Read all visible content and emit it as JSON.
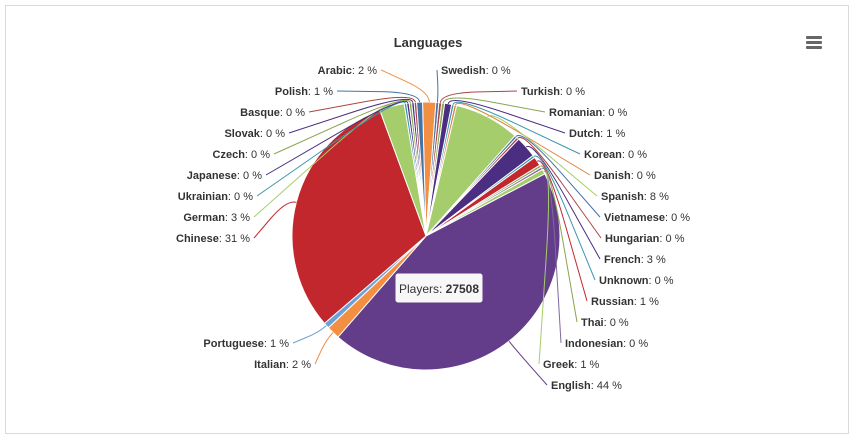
{
  "chart_data": {
    "type": "pie",
    "title": "Languages",
    "tooltip": {
      "series_label": "Players",
      "value_text": "27508"
    },
    "slices": [
      {
        "name": "Arabic",
        "percent_label": "2 %",
        "percent": 1.6,
        "color": "#f28f43"
      },
      {
        "name": "Swedish",
        "percent_label": "0 %",
        "percent": 0.35,
        "color": "#4572a7"
      },
      {
        "name": "Turkish",
        "percent_label": "0 %",
        "percent": 0.35,
        "color": "#aa4643"
      },
      {
        "name": "Romanian",
        "percent_label": "0 %",
        "percent": 0.35,
        "color": "#89a54e"
      },
      {
        "name": "Dutch",
        "percent_label": "1 %",
        "percent": 0.85,
        "color": "#4b2d82"
      },
      {
        "name": "Korean",
        "percent_label": "0 %",
        "percent": 0.3,
        "color": "#3d96ae"
      },
      {
        "name": "Danish",
        "percent_label": "0 %",
        "percent": 0.3,
        "color": "#db843d"
      },
      {
        "name": "Spanish",
        "percent_label": "8 %",
        "percent": 7.9,
        "color": "#a5cd6b"
      },
      {
        "name": "Vietnamese",
        "percent_label": "0 %",
        "percent": 0.3,
        "color": "#4572a7"
      },
      {
        "name": "Hungarian",
        "percent_label": "0 %",
        "percent": 0.3,
        "color": "#aa4643"
      },
      {
        "name": "French",
        "percent_label": "3 %",
        "percent": 2.6,
        "color": "#4b2d82"
      },
      {
        "name": "Unknown",
        "percent_label": "0 %",
        "percent": 0.3,
        "color": "#3d96ae"
      },
      {
        "name": "Russian",
        "percent_label": "1 %",
        "percent": 1.1,
        "color": "#c1272d"
      },
      {
        "name": "Thai",
        "percent_label": "0 %",
        "percent": 0.3,
        "color": "#89a54e"
      },
      {
        "name": "Indonesian",
        "percent_label": "0 %",
        "percent": 0.3,
        "color": "#80699b"
      },
      {
        "name": "Greek",
        "percent_label": "1 %",
        "percent": 0.6,
        "color": "#a5cd6b"
      },
      {
        "name": "English",
        "percent_label": "44 %",
        "percent": 44.2,
        "color": "#633d8a"
      },
      {
        "name": "Italian",
        "percent_label": "2 %",
        "percent": 1.6,
        "color": "#f28f43"
      },
      {
        "name": "Portuguese",
        "percent_label": "1 %",
        "percent": 0.7,
        "color": "#6e9fd6"
      },
      {
        "name": "Chinese",
        "percent_label": "31 %",
        "percent": 30.8,
        "color": "#c1272d"
      },
      {
        "name": "German",
        "percent_label": "3 %",
        "percent": 3.0,
        "color": "#a5cd6b"
      },
      {
        "name": "Ukrainian",
        "percent_label": "0 %",
        "percent": 0.3,
        "color": "#3d96ae"
      },
      {
        "name": "Japanese",
        "percent_label": "0 %",
        "percent": 0.3,
        "color": "#4b2d82"
      },
      {
        "name": "Czech",
        "percent_label": "0 %",
        "percent": 0.3,
        "color": "#89a54e"
      },
      {
        "name": "Slovak",
        "percent_label": "0 %",
        "percent": 0.3,
        "color": "#4b2d82"
      },
      {
        "name": "Basque",
        "percent_label": "0 %",
        "percent": 0.3,
        "color": "#aa4643"
      },
      {
        "name": "Polish",
        "percent_label": "1 %",
        "percent": 0.7,
        "color": "#4572a7"
      }
    ]
  }
}
